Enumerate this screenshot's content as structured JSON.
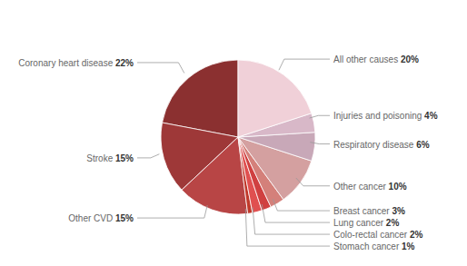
{
  "chart_data": {
    "type": "pie",
    "categories": [
      "Coronary heart disease",
      "Stroke",
      "Other CVD",
      "Stomach cancer",
      "Colo-rectal cancer",
      "Lung cancer",
      "Breast cancer",
      "Other cancer",
      "Respiratory disease",
      "Injuries and poisoning",
      "All other causes"
    ],
    "values": [
      22,
      15,
      15,
      1,
      2,
      2,
      3,
      10,
      6,
      4,
      20
    ],
    "value_labels": [
      "22%",
      "15%",
      "15%",
      "1%",
      "2%",
      "2%",
      "3%",
      "10%",
      "6%",
      "4%",
      "20%"
    ],
    "colors": [
      "#8B3030",
      "#9E3838",
      "#B84545",
      "#C0392B",
      "#E05050",
      "#D04040",
      "#D4807A",
      "#D4A0A0",
      "#C8A8B8",
      "#D8B8C8",
      "#F0D0D8"
    ],
    "data_labels": true
  }
}
